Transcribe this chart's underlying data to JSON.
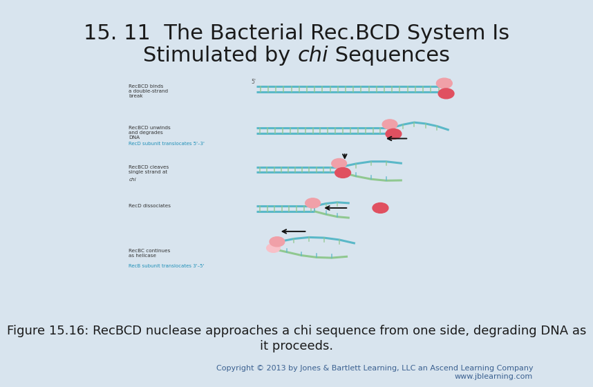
{
  "background_color": "#d8e4ee",
  "title_line1": "15. 11  The Bacterial Rec.BCD System Is",
  "title_fontsize": 22,
  "title_color": "#1a1a1a",
  "caption_line1": "Figure 15.16: RecBCD nuclease approaches a chi sequence from one side, degrading DNA as",
  "caption_line2": "it proceeds.",
  "caption_fontsize": 13,
  "caption_color": "#1a1a1a",
  "copyright_text": "Copyright © 2013 by Jones & Bartlett Learning, LLC an Ascend Learning Company\nwww.jblearning.com",
  "copyright_fontsize": 8,
  "copyright_color": "#3a6090",
  "teal": "#5ab8c8",
  "green_stripe": "#90c890",
  "pink_light": "#f0a0a8",
  "pink_dark": "#e05060",
  "cyan_text": "#2090b8",
  "label_color": "#333333",
  "white_panel": "#ffffff"
}
